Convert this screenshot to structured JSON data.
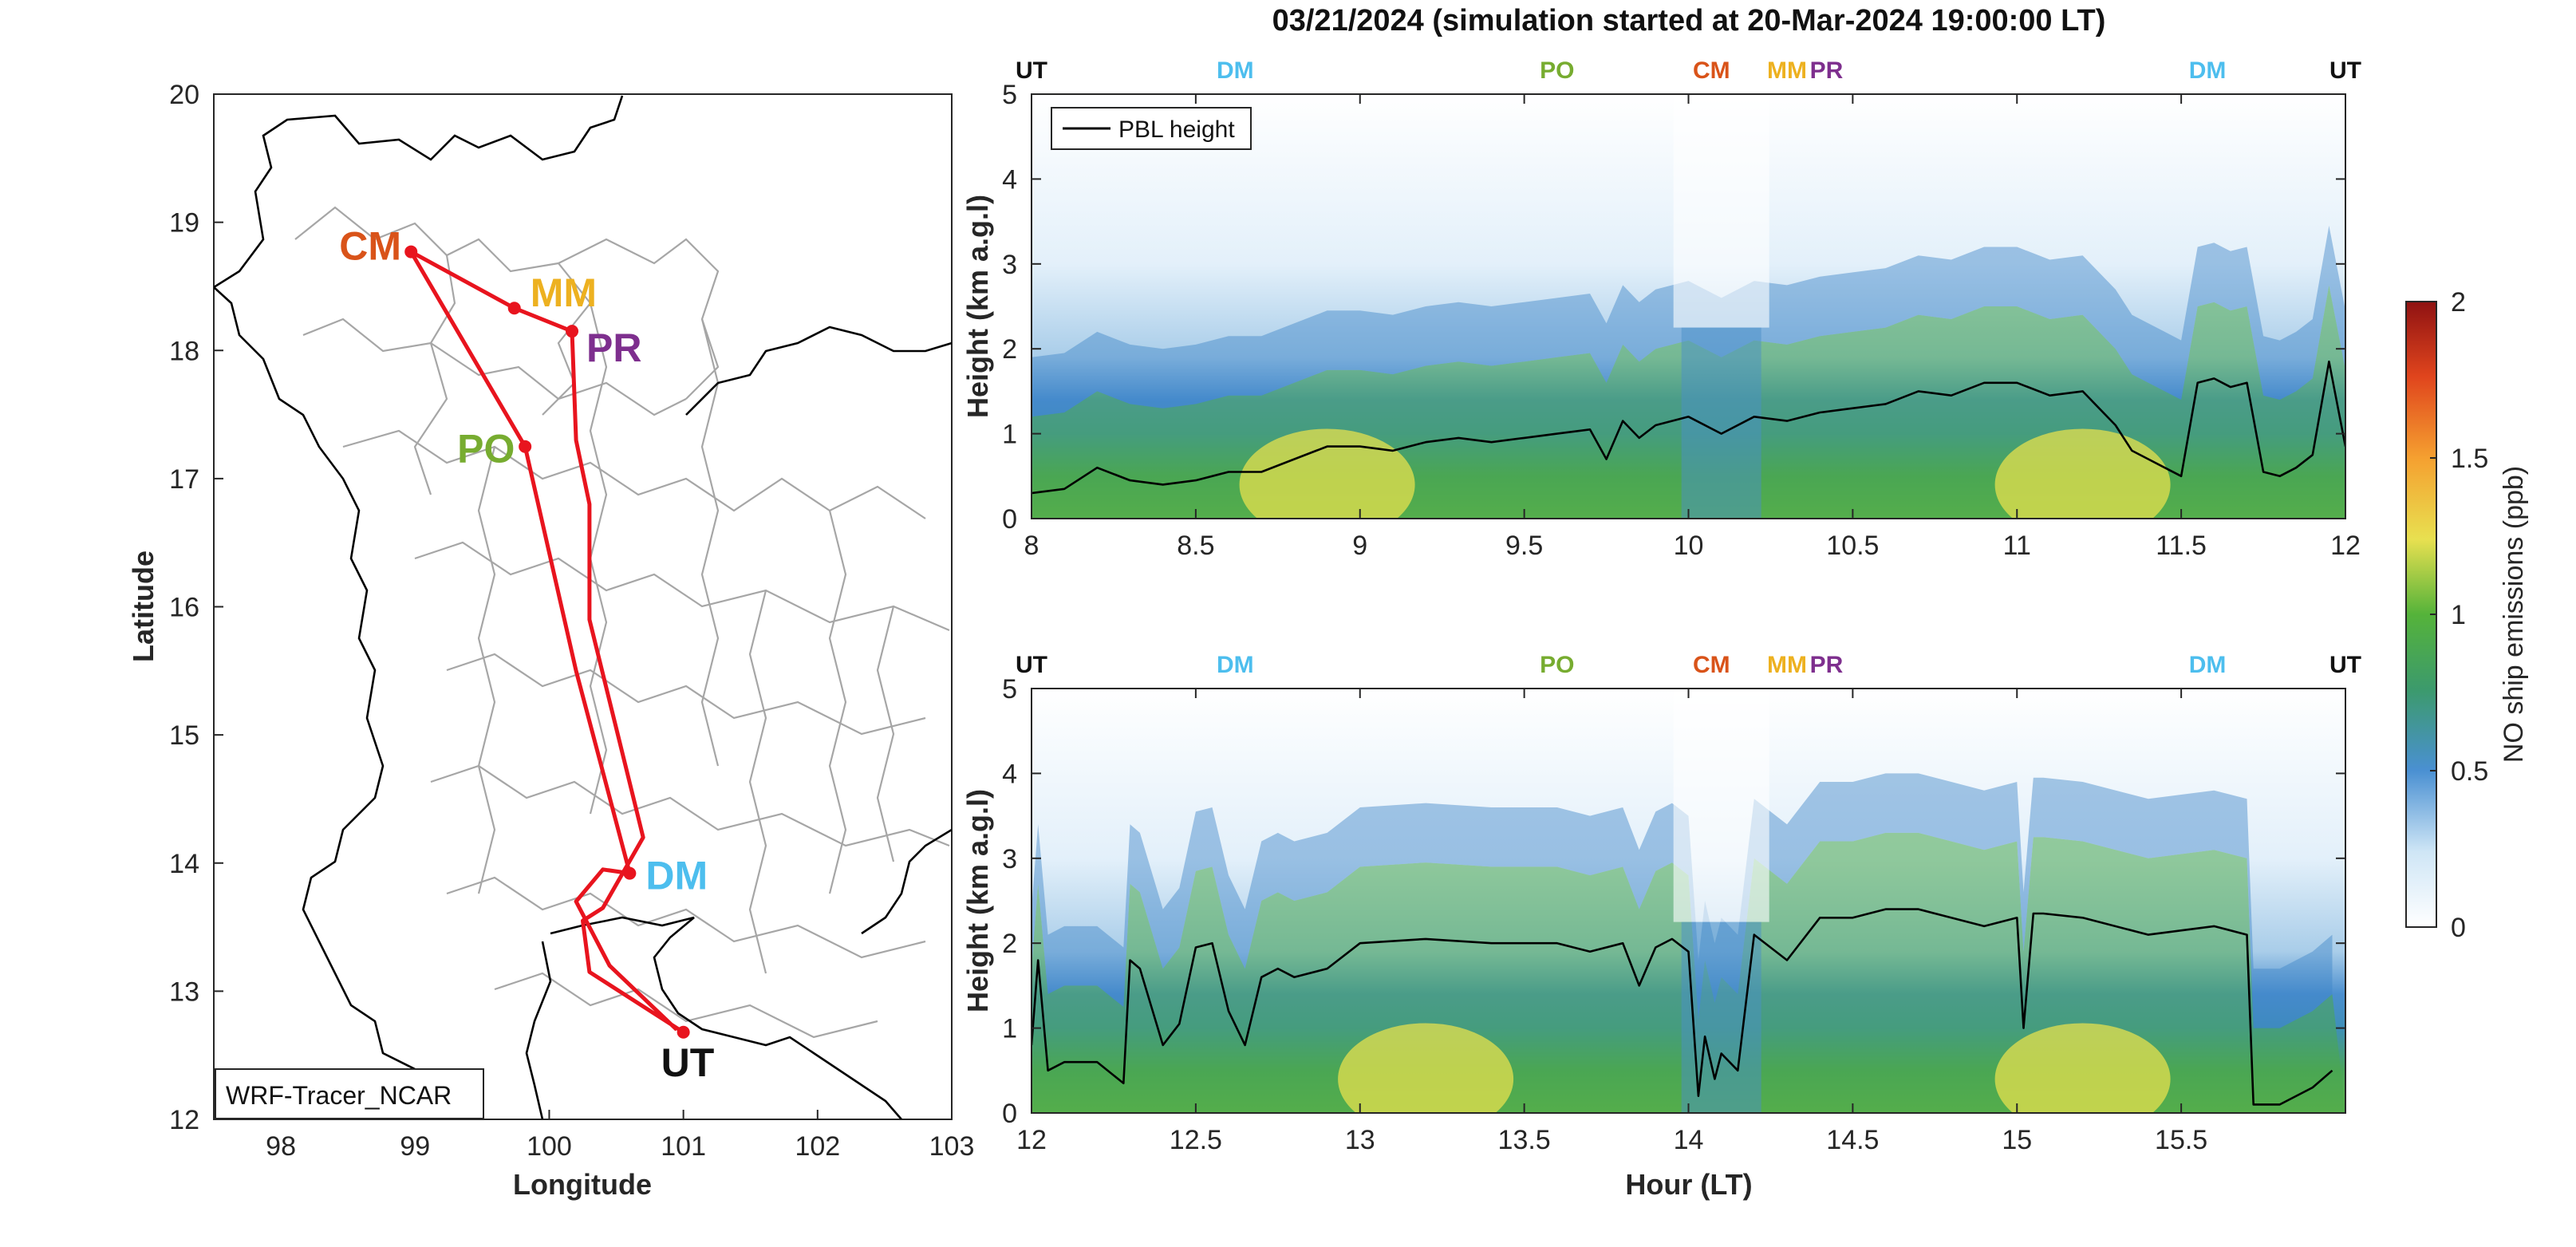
{
  "figure_title": "03/21/2024 (simulation started at 20-Mar-2024 19:00:00 LT)",
  "colors": {
    "route": "#e8141e",
    "pbl_line": "#000000",
    "boundary": "#a6a6a6",
    "coast": "#000000",
    "UT": "#111111",
    "DM": "#4dbeee",
    "PO": "#77ac30",
    "CM": "#d95319",
    "MM": "#edb120",
    "PR": "#7e2f8e"
  },
  "map": {
    "model_label": "WRF-Tracer_NCAR",
    "xlabel": "Longitude",
    "ylabel": "Latitude",
    "xlim": [
      97.5,
      103
    ],
    "ylim": [
      12,
      20
    ],
    "xticks": [
      "98",
      "99",
      "100",
      "101",
      "102",
      "103"
    ],
    "yticks": [
      "12",
      "13",
      "14",
      "15",
      "16",
      "17",
      "18",
      "19",
      "20"
    ],
    "stations": [
      {
        "code": "CM",
        "lon": 98.97,
        "lat": 18.77
      },
      {
        "code": "MM",
        "lon": 99.74,
        "lat": 18.33
      },
      {
        "code": "PR",
        "lon": 100.17,
        "lat": 18.15
      },
      {
        "code": "PO",
        "lon": 99.82,
        "lat": 17.25
      },
      {
        "code": "DM",
        "lon": 100.6,
        "lat": 13.92
      },
      {
        "code": "UT",
        "lon": 101.0,
        "lat": 12.68
      }
    ],
    "route_points": [
      [
        101.0,
        12.68
      ],
      [
        100.3,
        13.15
      ],
      [
        100.25,
        13.55
      ],
      [
        100.4,
        13.65
      ],
      [
        100.7,
        14.2
      ],
      [
        100.3,
        15.9
      ],
      [
        100.3,
        16.8
      ],
      [
        100.2,
        17.3
      ],
      [
        100.17,
        18.15
      ],
      [
        99.74,
        18.33
      ],
      [
        98.97,
        18.77
      ],
      [
        99.82,
        17.25
      ],
      [
        100.2,
        15.5
      ],
      [
        100.6,
        13.92
      ],
      [
        100.4,
        13.95
      ],
      [
        100.2,
        13.7
      ],
      [
        100.45,
        13.2
      ],
      [
        100.95,
        12.7
      ]
    ]
  },
  "chart_data": [
    {
      "type": "heatmap",
      "xlim": [
        8,
        12
      ],
      "ylim": [
        0,
        5
      ],
      "xticks": [
        "8",
        "8.5",
        "9",
        "9.5",
        "10",
        "10.5",
        "11",
        "11.5",
        "12"
      ],
      "yticks": [
        "0",
        "1",
        "2",
        "3",
        "4",
        "5"
      ],
      "ylabel": "Height (km a.g.l)",
      "xlabel": "",
      "legend": "PBL height",
      "legend_position": "top-left",
      "station_marks": [
        {
          "code": "UT",
          "hour": 8.0
        },
        {
          "code": "DM",
          "hour": 8.62
        },
        {
          "code": "PO",
          "hour": 9.6
        },
        {
          "code": "CM",
          "hour": 10.07
        },
        {
          "code": "MM",
          "hour": 10.3
        },
        {
          "code": "PR",
          "hour": 10.42
        },
        {
          "code": "DM",
          "hour": 11.58
        },
        {
          "code": "UT",
          "hour": 12.0
        }
      ],
      "pbl_height": {
        "hours": [
          8.0,
          8.1,
          8.2,
          8.3,
          8.4,
          8.5,
          8.6,
          8.7,
          8.8,
          8.9,
          9.0,
          9.1,
          9.2,
          9.3,
          9.4,
          9.5,
          9.6,
          9.7,
          9.75,
          9.8,
          9.85,
          9.9,
          10.0,
          10.1,
          10.2,
          10.3,
          10.4,
          10.5,
          10.6,
          10.7,
          10.8,
          10.9,
          11.0,
          11.1,
          11.2,
          11.3,
          11.35,
          11.4,
          11.45,
          11.5,
          11.55,
          11.6,
          11.65,
          11.7,
          11.75,
          11.8,
          11.85,
          11.9,
          11.95,
          12.0
        ],
        "km": [
          0.3,
          0.35,
          0.6,
          0.45,
          0.4,
          0.45,
          0.55,
          0.55,
          0.7,
          0.85,
          0.85,
          0.8,
          0.9,
          0.95,
          0.9,
          0.95,
          1.0,
          1.05,
          0.7,
          1.15,
          0.95,
          1.1,
          1.2,
          1.0,
          1.2,
          1.15,
          1.25,
          1.3,
          1.35,
          1.5,
          1.45,
          1.6,
          1.6,
          1.45,
          1.5,
          1.1,
          0.8,
          0.7,
          0.6,
          0.5,
          1.6,
          1.65,
          1.55,
          1.6,
          0.55,
          0.5,
          0.6,
          0.75,
          1.85,
          0.85
        ]
      },
      "emission_field": {
        "description": "",
        "surface_high_hours": [
          8.9,
          11.2
        ],
        "clean_hours": [
          10.1
        ]
      }
    },
    {
      "type": "heatmap",
      "xlim": [
        12,
        16
      ],
      "ylim": [
        0,
        5
      ],
      "xticks": [
        "12",
        "12.5",
        "13",
        "13.5",
        "14",
        "14.5",
        "15",
        "15.5"
      ],
      "yticks": [
        "0",
        "1",
        "2",
        "3",
        "4",
        "5"
      ],
      "ylabel": "Height (km a.g.l)",
      "xlabel": "Hour (LT)",
      "station_marks": [
        {
          "code": "UT",
          "hour": 12.0
        },
        {
          "code": "DM",
          "hour": 12.62
        },
        {
          "code": "PO",
          "hour": 13.6
        },
        {
          "code": "CM",
          "hour": 14.07
        },
        {
          "code": "MM",
          "hour": 14.3
        },
        {
          "code": "PR",
          "hour": 14.42
        },
        {
          "code": "DM",
          "hour": 15.58
        },
        {
          "code": "UT",
          "hour": 16.0
        }
      ],
      "pbl_height": {
        "hours": [
          12.0,
          12.02,
          12.05,
          12.1,
          12.2,
          12.28,
          12.3,
          12.33,
          12.4,
          12.45,
          12.5,
          12.55,
          12.6,
          12.65,
          12.7,
          12.75,
          12.8,
          12.9,
          13.0,
          13.2,
          13.4,
          13.6,
          13.7,
          13.8,
          13.85,
          13.9,
          13.95,
          14.0,
          14.03,
          14.05,
          14.08,
          14.1,
          14.15,
          14.2,
          14.3,
          14.4,
          14.5,
          14.6,
          14.7,
          14.8,
          14.9,
          15.0,
          15.02,
          15.05,
          15.08,
          15.2,
          15.4,
          15.6,
          15.7,
          15.72,
          15.8,
          15.9,
          15.96
        ],
        "km": [
          0.8,
          1.8,
          0.5,
          0.6,
          0.6,
          0.35,
          1.8,
          1.7,
          0.8,
          1.05,
          1.95,
          2.0,
          1.2,
          0.8,
          1.6,
          1.7,
          1.6,
          1.7,
          2.0,
          2.05,
          2.0,
          2.0,
          1.9,
          2.0,
          1.5,
          1.95,
          2.05,
          1.9,
          0.2,
          0.9,
          0.4,
          0.7,
          0.5,
          2.1,
          1.8,
          2.3,
          2.3,
          2.4,
          2.4,
          2.3,
          2.2,
          2.3,
          1.0,
          2.35,
          2.35,
          2.3,
          2.1,
          2.2,
          2.1,
          0.1,
          0.1,
          0.3,
          0.5
        ]
      },
      "emission_field": {
        "description": "",
        "surface_high_hours": [
          13.2,
          15.2
        ],
        "clean_hours": [
          14.1
        ]
      }
    }
  ],
  "colorbar": {
    "label": "NO ship emissions (ppb)",
    "range": [
      0,
      2
    ],
    "ticks": [
      "0",
      "0.5",
      "1",
      "1.5",
      "2"
    ],
    "stops": [
      "#ffffff",
      "#6ea8dc",
      "#4f9ccf",
      "#3fa53f",
      "#6fbe3c",
      "#e8e050",
      "#f59f2e",
      "#e0451d",
      "#9b1414"
    ]
  }
}
